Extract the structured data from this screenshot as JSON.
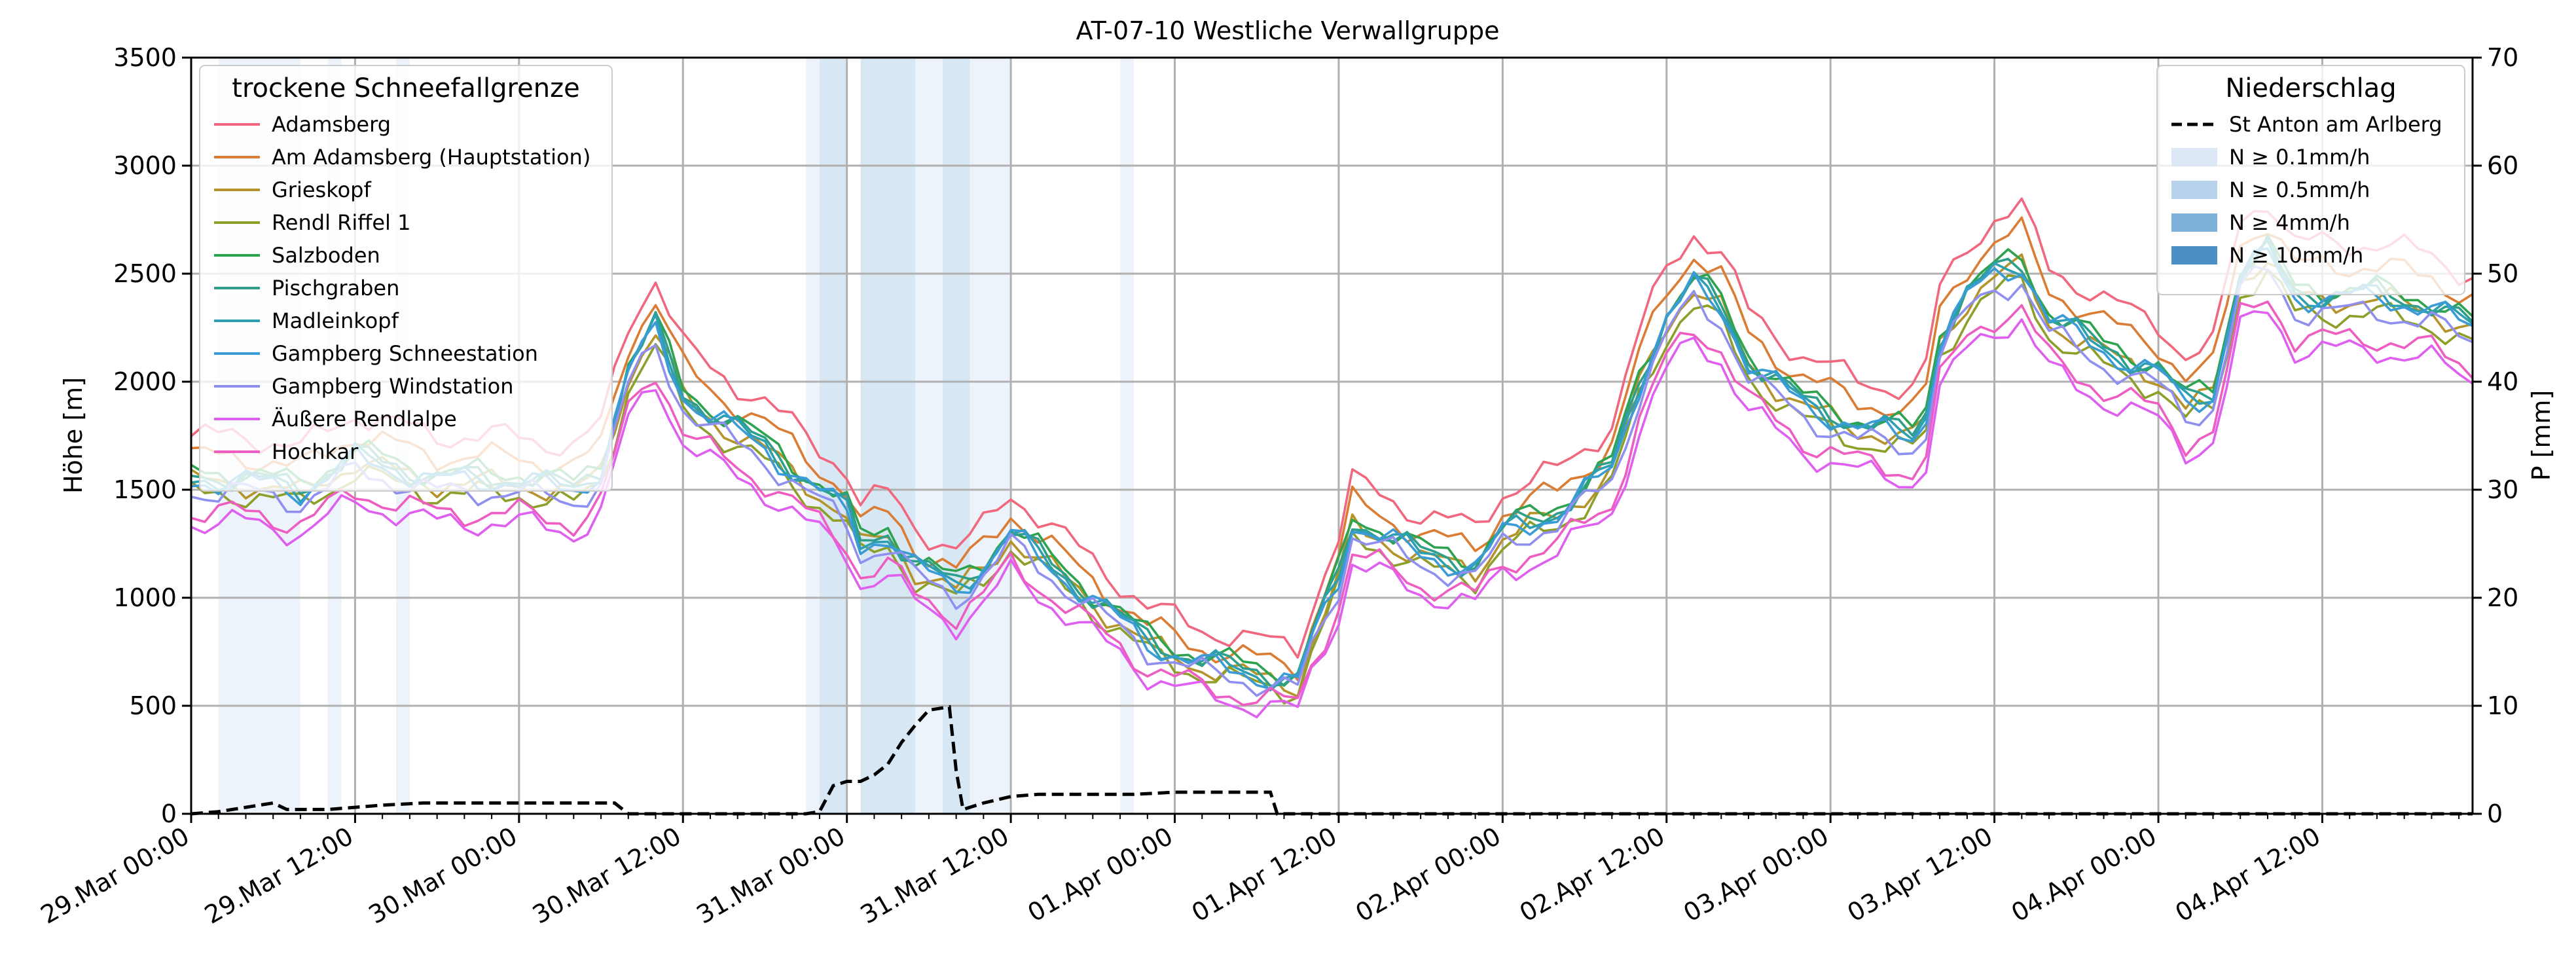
{
  "chart_data": {
    "type": "line",
    "title": "AT-07-10 Westliche Verwallgruppe",
    "ylabel_left": "Höhe [m]",
    "ylabel_right": "P [mm]",
    "xlim_hours": [
      0,
      167
    ],
    "ylim_left": [
      0,
      3500
    ],
    "ylim_right": [
      0,
      70
    ],
    "x_ticks": [
      {
        "hour": 0,
        "label": "29.Mar 00:00"
      },
      {
        "hour": 12,
        "label": "29.Mar 12:00"
      },
      {
        "hour": 24,
        "label": "30.Mar 00:00"
      },
      {
        "hour": 36,
        "label": "30.Mar 12:00"
      },
      {
        "hour": 48,
        "label": "31.Mar 00:00"
      },
      {
        "hour": 60,
        "label": "31.Mar 12:00"
      },
      {
        "hour": 72,
        "label": "01.Apr 00:00"
      },
      {
        "hour": 84,
        "label": "01.Apr 12:00"
      },
      {
        "hour": 96,
        "label": "02.Apr 00:00"
      },
      {
        "hour": 108,
        "label": "02.Apr 12:00"
      },
      {
        "hour": 120,
        "label": "03.Apr 00:00"
      },
      {
        "hour": 132,
        "label": "03.Apr 12:00"
      },
      {
        "hour": 144,
        "label": "04.Apr 00:00"
      },
      {
        "hour": 156,
        "label": "04.Apr 12:00"
      }
    ],
    "y_ticks_left": [
      0,
      500,
      1000,
      1500,
      2000,
      2500,
      3000,
      3500
    ],
    "y_ticks_right": [
      0,
      10,
      20,
      30,
      40,
      50,
      60,
      70
    ],
    "grid": true,
    "legend_left": {
      "title": "trockene Schneefallgrenze",
      "position": "top-left"
    },
    "legend_right": {
      "title": "Niederschlag",
      "position": "top-right",
      "precip_label": "St Anton am Arlberg",
      "band_entries": [
        {
          "label": "N ≥ 0.1mm/h",
          "color": "#dce8f5"
        },
        {
          "label": "N ≥ 0.5mm/h",
          "color": "#b7d3ec"
        },
        {
          "label": "N ≥ 4mm/h",
          "color": "#7fb2da"
        },
        {
          "label": "N ≥ 10mm/h",
          "color": "#4a90c6"
        }
      ]
    },
    "precip_bands": [
      {
        "start": 2,
        "end": 8,
        "level": 0
      },
      {
        "start": 10,
        "end": 11,
        "level": 0
      },
      {
        "start": 15,
        "end": 16,
        "level": 0
      },
      {
        "start": 45,
        "end": 46,
        "level": 0
      },
      {
        "start": 46,
        "end": 48,
        "level": 1
      },
      {
        "start": 49,
        "end": 53,
        "level": 1
      },
      {
        "start": 53,
        "end": 55,
        "level": 0
      },
      {
        "start": 55,
        "end": 57,
        "level": 1
      },
      {
        "start": 57,
        "end": 60,
        "level": 0
      },
      {
        "start": 68,
        "end": 69,
        "level": 0
      }
    ],
    "precip_series": {
      "name": "St Anton am Arlberg",
      "points": [
        [
          0,
          0
        ],
        [
          2,
          0.2
        ],
        [
          4,
          0.6
        ],
        [
          6,
          1.0
        ],
        [
          7,
          0.4
        ],
        [
          10,
          0.4
        ],
        [
          12,
          0.6
        ],
        [
          14,
          0.8
        ],
        [
          17,
          1.0
        ],
        [
          20,
          1.0
        ],
        [
          24,
          1.0
        ],
        [
          28,
          1.0
        ],
        [
          31,
          1.0
        ],
        [
          32,
          0
        ],
        [
          45,
          0
        ],
        [
          46,
          0.2
        ],
        [
          47,
          2.6
        ],
        [
          48,
          3.0
        ],
        [
          49,
          3.0
        ],
        [
          50,
          3.6
        ],
        [
          51,
          4.6
        ],
        [
          52,
          6.6
        ],
        [
          53,
          8.2
        ],
        [
          54,
          9.6
        ],
        [
          55,
          9.8
        ],
        [
          55.5,
          9.9
        ],
        [
          56,
          4.0
        ],
        [
          56.5,
          0.4
        ],
        [
          58,
          1.0
        ],
        [
          60,
          1.6
        ],
        [
          62,
          1.8
        ],
        [
          66,
          1.8
        ],
        [
          69,
          1.8
        ],
        [
          72,
          2.0
        ],
        [
          76,
          2.0
        ],
        [
          79,
          2.0
        ],
        [
          79.5,
          0
        ],
        [
          167,
          0
        ]
      ]
    },
    "series": [
      {
        "name": "Adamsberg",
        "color": "#f0677e",
        "offset": 120,
        "amp": 1.05,
        "phase": 0.0
      },
      {
        "name": "Am Adamsberg (Hauptstation)",
        "color": "#db7c34",
        "offset": 40,
        "amp": 1.04,
        "phase": 0.5
      },
      {
        "name": "Grieskopf",
        "color": "#b5932a",
        "offset": -20,
        "amp": 1.0,
        "phase": 1.0
      },
      {
        "name": "Rendl Riffel 1",
        "color": "#8e9f29",
        "offset": -40,
        "amp": 0.98,
        "phase": 1.5
      },
      {
        "name": "Salzboden",
        "color": "#2ea34f",
        "offset": 30,
        "amp": 1.0,
        "phase": 2.0
      },
      {
        "name": "Pischgraben",
        "color": "#2d9f8a",
        "offset": 10,
        "amp": 1.0,
        "phase": 2.5
      },
      {
        "name": "Madleinkopf",
        "color": "#2e9fb0",
        "offset": 0,
        "amp": 1.0,
        "phase": 3.0
      },
      {
        "name": "Gampberg Schneestation",
        "color": "#3a9bd6",
        "offset": -10,
        "amp": 1.0,
        "phase": 3.5
      },
      {
        "name": "Gampberg Windstation",
        "color": "#8f8ff0",
        "offset": -30,
        "amp": 0.98,
        "phase": 4.0
      },
      {
        "name": "Äußere Rendlalpe",
        "color": "#df5ff0",
        "offset": -110,
        "amp": 0.94,
        "phase": 4.5
      },
      {
        "name": "Hochkar",
        "color": "#ee5dc2",
        "offset": -80,
        "amp": 0.95,
        "phase": 5.0
      }
    ],
    "base_curve": [
      [
        0,
        1550
      ],
      [
        4,
        1550
      ],
      [
        8,
        1500
      ],
      [
        12,
        1650
      ],
      [
        15,
        1600
      ],
      [
        18,
        1550
      ],
      [
        24,
        1550
      ],
      [
        28,
        1500
      ],
      [
        30,
        1600
      ],
      [
        32,
        2050
      ],
      [
        34,
        2250
      ],
      [
        36,
        1950
      ],
      [
        38,
        1850
      ],
      [
        42,
        1700
      ],
      [
        46,
        1500
      ],
      [
        48,
        1400
      ],
      [
        49,
        1250
      ],
      [
        51,
        1300
      ],
      [
        53,
        1150
      ],
      [
        56,
        1050
      ],
      [
        58,
        1150
      ],
      [
        60,
        1300
      ],
      [
        62,
        1200
      ],
      [
        66,
        1000
      ],
      [
        70,
        800
      ],
      [
        74,
        700
      ],
      [
        78,
        650
      ],
      [
        81,
        620
      ],
      [
        82,
        800
      ],
      [
        84,
        1100
      ],
      [
        85,
        1350
      ],
      [
        87,
        1300
      ],
      [
        90,
        1200
      ],
      [
        94,
        1150
      ],
      [
        96,
        1300
      ],
      [
        100,
        1400
      ],
      [
        104,
        1600
      ],
      [
        106,
        2000
      ],
      [
        108,
        2300
      ],
      [
        110,
        2450
      ],
      [
        112,
        2350
      ],
      [
        114,
        2100
      ],
      [
        118,
        1900
      ],
      [
        122,
        1800
      ],
      [
        126,
        1750
      ],
      [
        127,
        1850
      ],
      [
        128,
        2200
      ],
      [
        130,
        2400
      ],
      [
        132,
        2500
      ],
      [
        134,
        2550
      ],
      [
        136,
        2300
      ],
      [
        140,
        2150
      ],
      [
        144,
        2050
      ],
      [
        146,
        1900
      ],
      [
        148,
        1950
      ],
      [
        150,
        2500
      ],
      [
        152,
        2600
      ],
      [
        154,
        2400
      ],
      [
        156,
        2400
      ],
      [
        160,
        2400
      ],
      [
        164,
        2350
      ],
      [
        167,
        2250
      ]
    ]
  }
}
